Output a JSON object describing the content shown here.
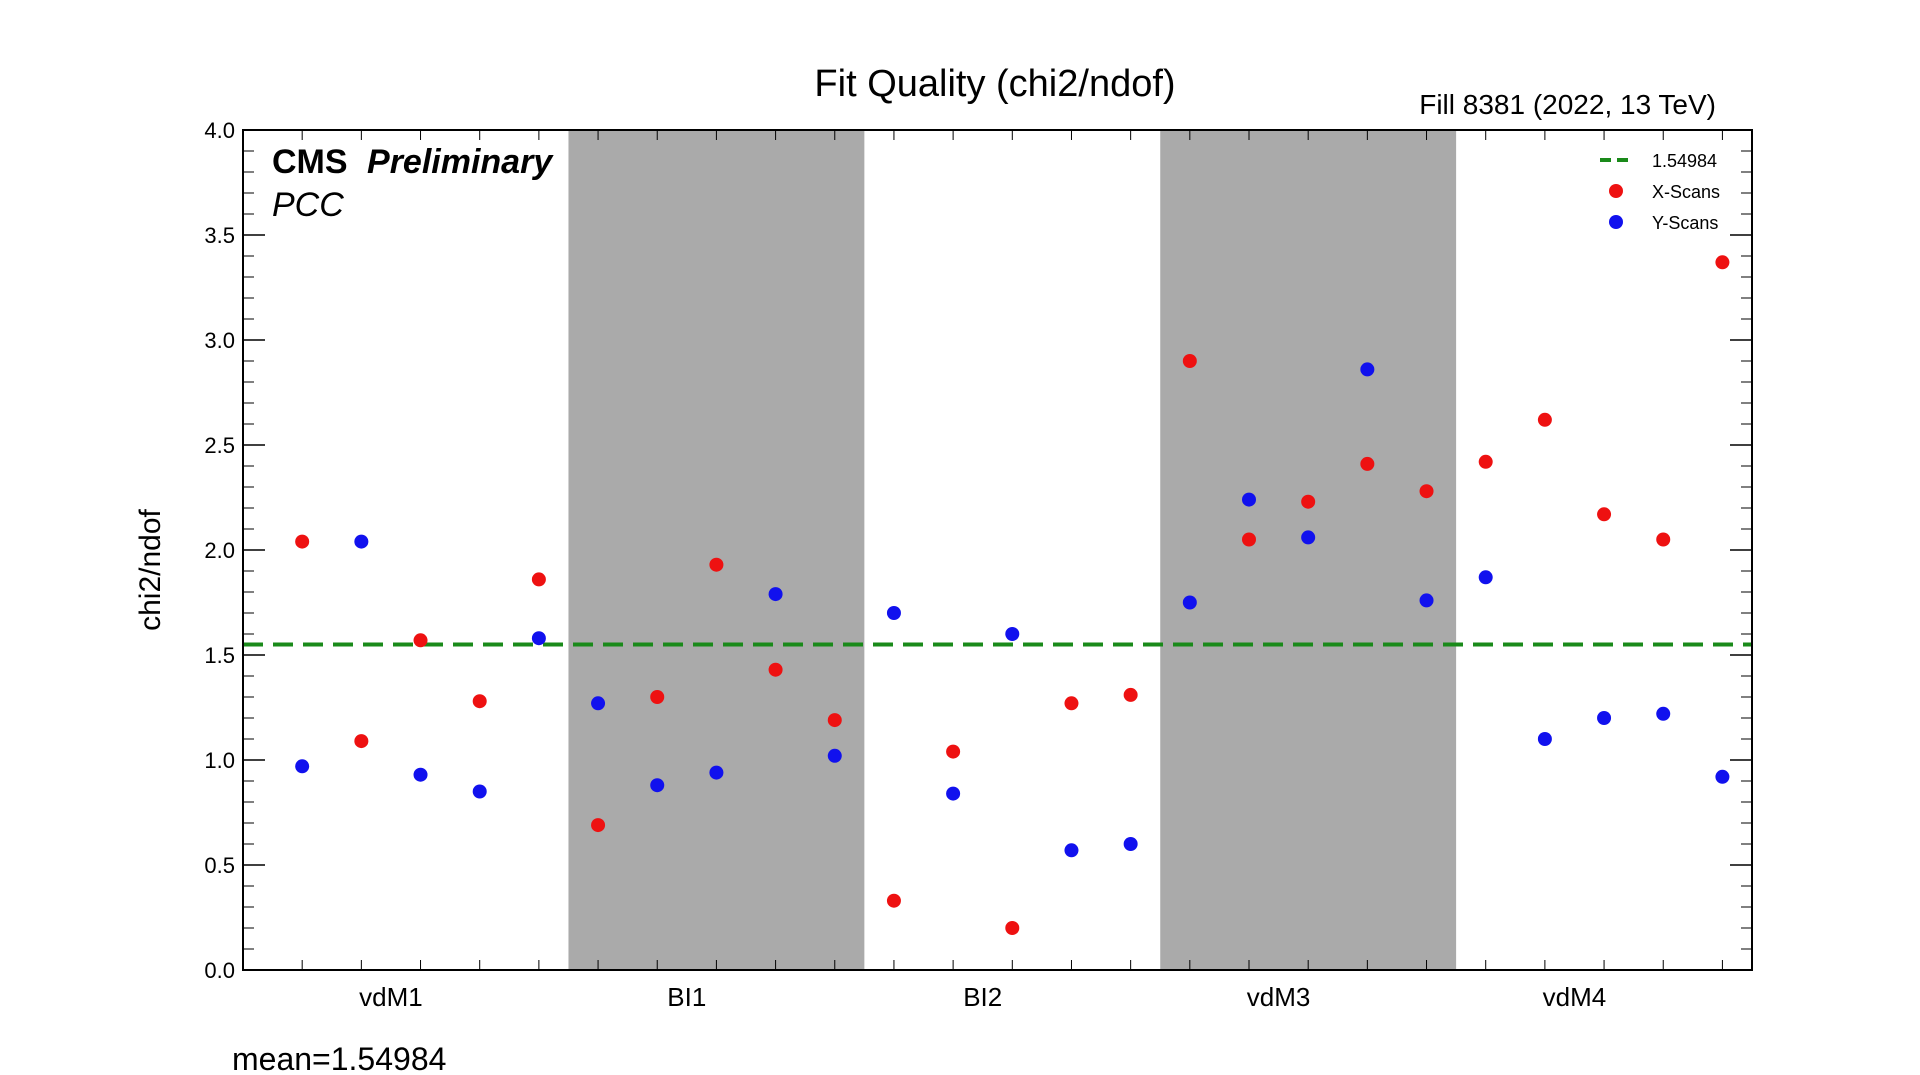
{
  "chart_data": {
    "type": "scatter",
    "title": "Fit Quality (chi2/ndof)",
    "subtitle": "Fill 8381 (2022, 13 TeV)",
    "ylabel": "chi2/ndof",
    "xlabel": "",
    "ylim": [
      0,
      4
    ],
    "yticks": [
      "0.0",
      "0.5",
      "1.0",
      "1.5",
      "2.0",
      "2.5",
      "3.0",
      "3.5",
      "4.0"
    ],
    "categories": [
      "vdM1",
      "BI1",
      "BI2",
      "vdM3",
      "vdM4"
    ],
    "shaded_categories": [
      "BI1",
      "vdM3"
    ],
    "points_per_category": 5,
    "experiment": "CMS",
    "status": "Preliminary",
    "detector": "PCC",
    "mean_line": {
      "label": "1.54984",
      "value": 1.54984,
      "color": "#1a8a1a"
    },
    "mean_text": "mean=1.54984",
    "legend_position": "top-right",
    "series": [
      {
        "name": "X-Scans",
        "color": "#ee1111",
        "values": [
          2.04,
          1.09,
          1.57,
          1.28,
          1.86,
          0.69,
          1.3,
          1.93,
          1.43,
          1.19,
          0.33,
          1.04,
          0.2,
          1.27,
          1.31,
          2.9,
          2.05,
          2.23,
          2.41,
          2.28,
          2.42,
          2.62,
          2.17,
          2.05,
          3.37
        ]
      },
      {
        "name": "Y-Scans",
        "color": "#1111ee",
        "values": [
          0.97,
          2.04,
          0.93,
          0.85,
          1.58,
          1.27,
          0.88,
          0.94,
          1.79,
          1.02,
          1.7,
          0.84,
          1.6,
          0.57,
          0.6,
          1.75,
          2.24,
          2.06,
          2.86,
          1.76,
          1.87,
          1.1,
          1.2,
          1.22,
          0.92
        ]
      }
    ]
  }
}
